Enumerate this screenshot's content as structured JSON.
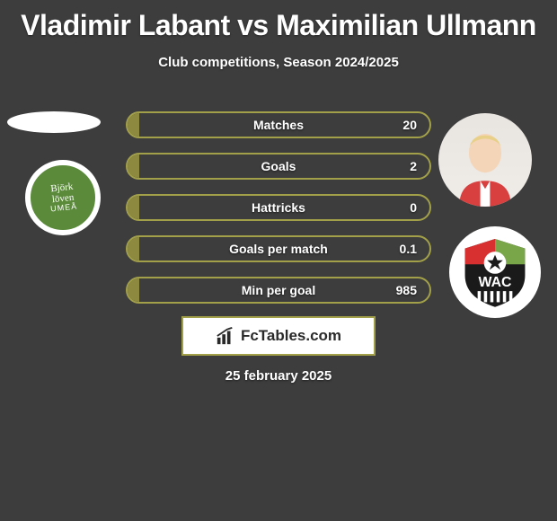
{
  "title": "Vladimir Labant vs Maximilian Ullmann",
  "subtitle": "Club competitions, Season 2024/2025",
  "colors": {
    "background": "#3d3d3d",
    "bar_border": "#a3a04a",
    "bar_fill": "#8d8a3f",
    "text": "#ffffff"
  },
  "stats": [
    {
      "label": "Matches",
      "value_right": "20",
      "fill_pct": 4
    },
    {
      "label": "Goals",
      "value_right": "2",
      "fill_pct": 4
    },
    {
      "label": "Hattricks",
      "value_right": "0",
      "fill_pct": 4
    },
    {
      "label": "Goals per match",
      "value_right": "0.1",
      "fill_pct": 4
    },
    {
      "label": "Min per goal",
      "value_right": "985",
      "fill_pct": 4
    }
  ],
  "left_badge": {
    "line1": "Björk",
    "line2": "löven",
    "line3": "UMEÅ"
  },
  "right_badge": {
    "text": "WAC"
  },
  "footer": {
    "brand": "FcTables.com",
    "date": "25 february 2025"
  }
}
